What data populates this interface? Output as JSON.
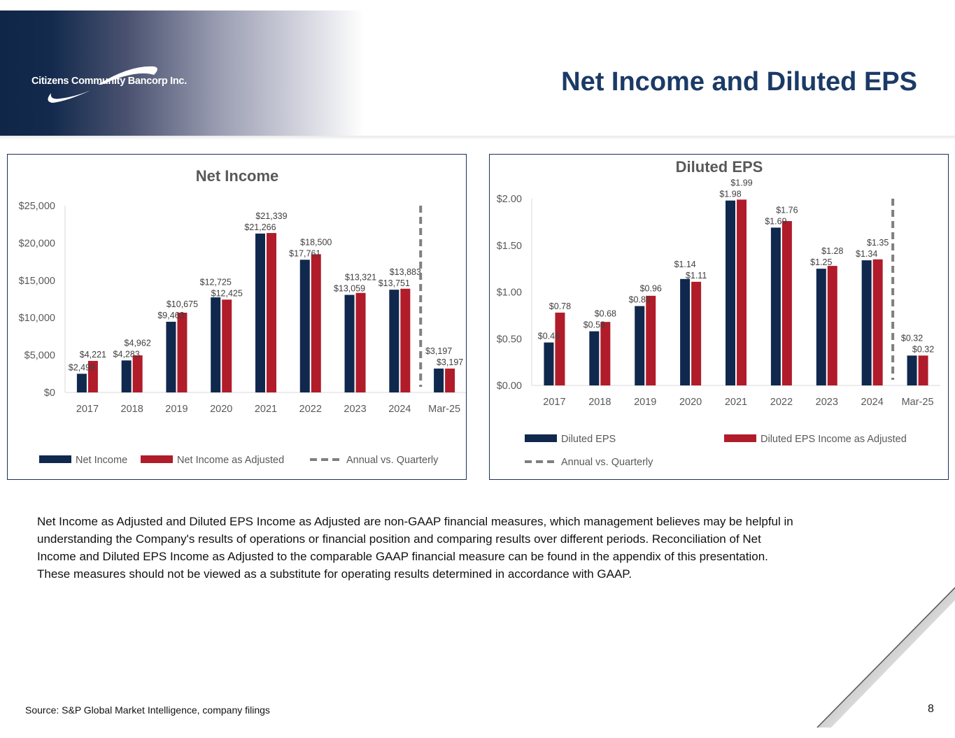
{
  "header": {
    "company": "Citizens Community Bancorp Inc.",
    "title": "Net Income and Diluted EPS"
  },
  "colors": {
    "navy": "#10284d",
    "red": "#b01c2a",
    "dash": "#7f7f7f",
    "axis_text": "#595959"
  },
  "chart_data": [
    {
      "type": "bar",
      "title": "Net Income",
      "categories": [
        "2017",
        "2018",
        "2019",
        "2020",
        "2021",
        "2022",
        "2023",
        "2024",
        "Mar-25"
      ],
      "series": [
        {
          "name": "Net Income",
          "values": [
            2499,
            4283,
            9463,
            12725,
            21266,
            17761,
            13059,
            13751,
            3197
          ],
          "labels": [
            "$2,499",
            "$4,283",
            "$9,463",
            "$12,725",
            "$21,266",
            "$17,761",
            "$13,059",
            "$13,751",
            "$3,197"
          ]
        },
        {
          "name": "Net Income as Adjusted",
          "values": [
            4221,
            4962,
            10675,
            12425,
            21339,
            18500,
            13321,
            13883,
            3197
          ],
          "labels": [
            "$4,221",
            "$4,962",
            "$10,675",
            "$12,425",
            "$21,339",
            "$18,500",
            "$13,321",
            "$13,883",
            "$3,197"
          ]
        }
      ],
      "ylim": [
        0,
        25000
      ],
      "yticks": [
        0,
        5000,
        10000,
        15000,
        20000,
        25000
      ],
      "ytick_labels": [
        "$0",
        "$5,000",
        "$10,000",
        "$15,000",
        "$20,000",
        "$25,000"
      ],
      "divider_legend": "Annual vs. Quarterly",
      "divider_after": "2024",
      "legend": "bottom"
    },
    {
      "type": "bar",
      "title": "Diluted EPS",
      "categories": [
        "2017",
        "2018",
        "2019",
        "2020",
        "2021",
        "2022",
        "2023",
        "2024",
        "Mar-25"
      ],
      "series": [
        {
          "name": "Diluted EPS",
          "values": [
            0.46,
            0.58,
            0.85,
            1.14,
            1.98,
            1.69,
            1.25,
            1.34,
            0.32
          ],
          "labels": [
            "$0.46",
            "$0.58",
            "$0.85",
            "$1.14",
            "$1.98",
            "$1.69",
            "$1.25",
            "$1.34",
            "$0.32"
          ]
        },
        {
          "name": "Diluted EPS Income as Adjusted",
          "values": [
            0.78,
            0.68,
            0.96,
            1.11,
            1.99,
            1.76,
            1.28,
            1.35,
            0.32
          ],
          "labels": [
            "$0.78",
            "$0.68",
            "$0.96",
            "$1.11",
            "$1.99",
            "$1.76",
            "$1.28",
            "$1.35",
            "$0.32"
          ]
        }
      ],
      "ylim": [
        0,
        2
      ],
      "yticks": [
        0,
        0.5,
        1,
        1.5,
        2
      ],
      "ytick_labels": [
        "$0.00",
        "$0.50",
        "$1.00",
        "$1.50",
        "$2.00"
      ],
      "divider_legend": "Annual vs. Quarterly",
      "divider_after": "2024",
      "legend": "bottom"
    }
  ],
  "footer": {
    "note": "Net Income as Adjusted and Diluted EPS Income as Adjusted are non-GAAP financial measures, which management believes may be helpful in understanding the Company's results of operations or financial position and comparing results over different periods. Reconciliation of Net Income and Diluted EPS Income as Adjusted to the comparable GAAP financial measure can be found in the appendix of this presentation. These measures should not be viewed as a substitute for operating results determined in accordance with GAAP.",
    "source": "Source: S&P Global Market Intelligence, company filings",
    "page": "8"
  }
}
